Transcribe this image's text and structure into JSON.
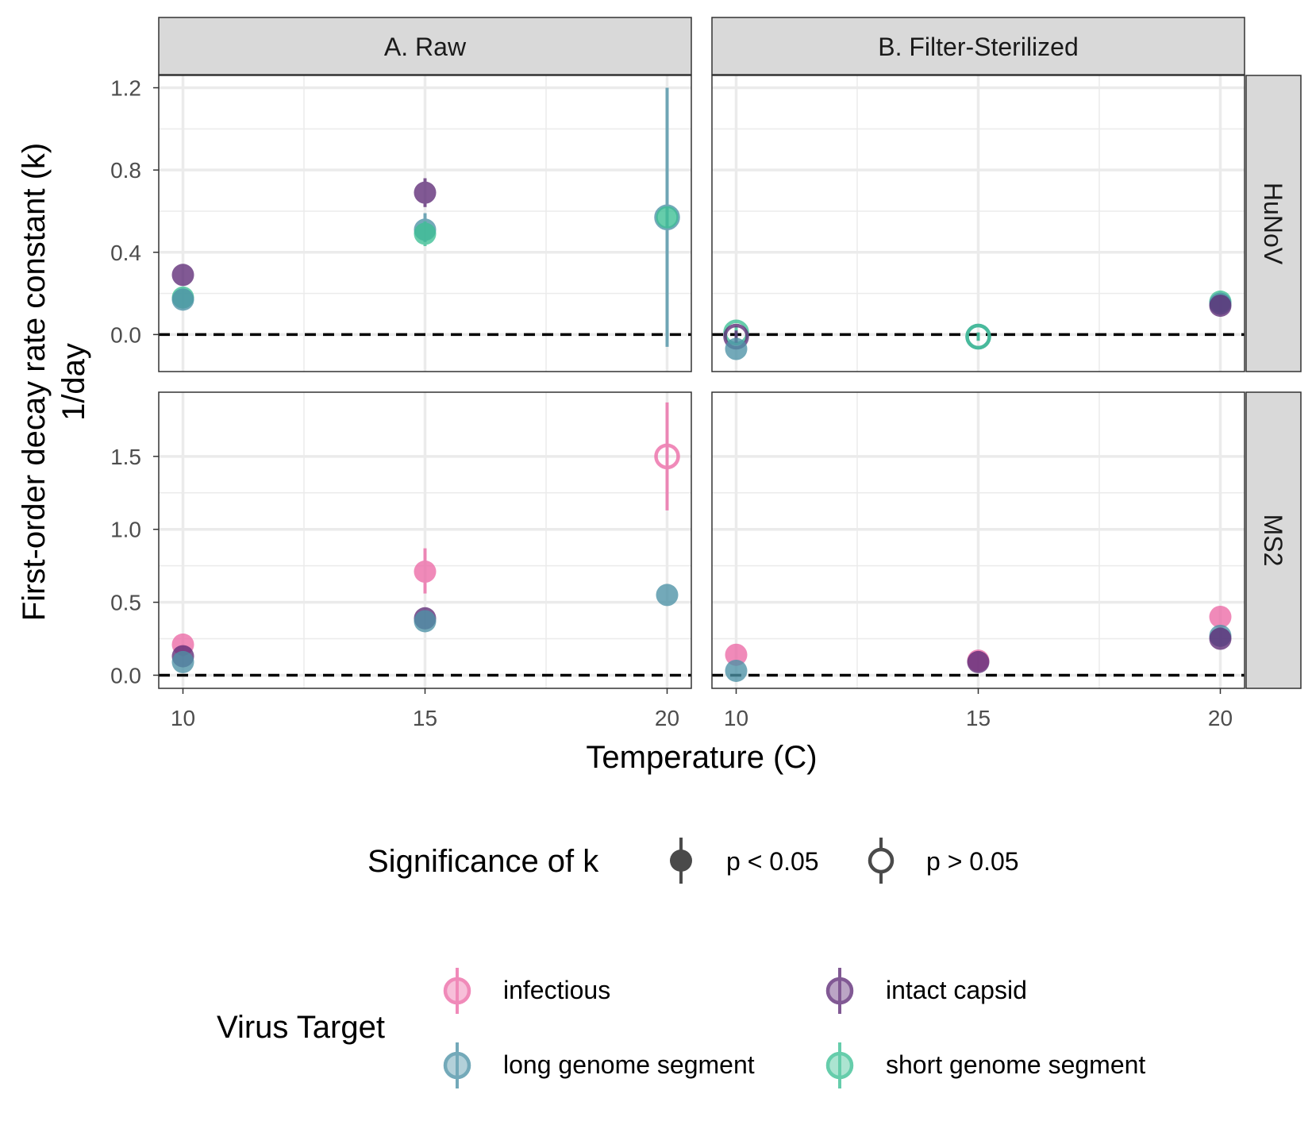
{
  "chart_data": {
    "type": "scatter",
    "subtype": "faceted point-range",
    "facet_columns": [
      "A. Raw",
      "B. Filter-Sterilized"
    ],
    "facet_rows": [
      "HuNoV",
      "MS2"
    ],
    "xlabel": "Temperature (C)",
    "ylabel_lines": [
      "First-order decay rate constant (k)",
      "1/day"
    ],
    "x_ticks": [
      "10",
      "15",
      "20"
    ],
    "xlim": [
      9.5,
      20.5
    ],
    "rows": {
      "HuNoV": {
        "ylim": [
          -0.18,
          1.26
        ],
        "y_ticks": [
          "0.0",
          "0.4",
          "0.8",
          "1.2"
        ],
        "y_tick_values": [
          0.0,
          0.4,
          0.8,
          1.2
        ]
      },
      "MS2": {
        "ylim": [
          -0.09,
          1.94
        ],
        "y_ticks": [
          "0.0",
          "0.5",
          "1.0",
          "1.5"
        ],
        "y_tick_values": [
          0.0,
          0.5,
          1.0,
          1.5
        ]
      }
    },
    "reference_line": {
      "y": 0,
      "style": "dashed"
    },
    "grid": true,
    "legend_position": "bottom",
    "colors": {
      "infectious": "#ec6aa6",
      "intact capsid": "#5e2b77",
      "long genome segment": "#4d92a6",
      "short genome segment": "#3cbf94"
    },
    "points": [
      {
        "panel": "A. Raw",
        "row": "HuNoV",
        "target": "intact capsid",
        "x": 10,
        "y": 0.29,
        "lo": 0.26,
        "hi": 0.33,
        "significant": true
      },
      {
        "panel": "A. Raw",
        "row": "HuNoV",
        "target": "short genome segment",
        "x": 10,
        "y": 0.18,
        "lo": 0.15,
        "hi": 0.21,
        "significant": true
      },
      {
        "panel": "A. Raw",
        "row": "HuNoV",
        "target": "long genome segment",
        "x": 10,
        "y": 0.17,
        "lo": 0.14,
        "hi": 0.2,
        "significant": true
      },
      {
        "panel": "A. Raw",
        "row": "HuNoV",
        "target": "intact capsid",
        "x": 15,
        "y": 0.69,
        "lo": 0.62,
        "hi": 0.76,
        "significant": true
      },
      {
        "panel": "A. Raw",
        "row": "HuNoV",
        "target": "long genome segment",
        "x": 15,
        "y": 0.51,
        "lo": 0.45,
        "hi": 0.59,
        "significant": true
      },
      {
        "panel": "A. Raw",
        "row": "HuNoV",
        "target": "short genome segment",
        "x": 15,
        "y": 0.49,
        "lo": 0.43,
        "hi": 0.55,
        "significant": true
      },
      {
        "panel": "A. Raw",
        "row": "HuNoV",
        "target": "long genome segment",
        "x": 20,
        "y": 0.57,
        "lo": -0.06,
        "hi": 1.2,
        "significant": false
      },
      {
        "panel": "A. Raw",
        "row": "HuNoV",
        "target": "short genome segment",
        "x": 20,
        "y": 0.57,
        "lo": 0.53,
        "hi": 0.61,
        "significant": true
      },
      {
        "panel": "B. Filter-Sterilized",
        "row": "HuNoV",
        "target": "short genome segment",
        "x": 10,
        "y": 0.01,
        "lo": -0.02,
        "hi": 0.04,
        "significant": false
      },
      {
        "panel": "B. Filter-Sterilized",
        "row": "HuNoV",
        "target": "intact capsid",
        "x": 10,
        "y": -0.01,
        "lo": -0.04,
        "hi": 0.02,
        "significant": false
      },
      {
        "panel": "B. Filter-Sterilized",
        "row": "HuNoV",
        "target": "long genome segment",
        "x": 10,
        "y": -0.07,
        "lo": -0.1,
        "hi": -0.04,
        "significant": true
      },
      {
        "panel": "B. Filter-Sterilized",
        "row": "HuNoV",
        "target": "long genome segment",
        "x": 15,
        "y": -0.01,
        "lo": -0.03,
        "hi": 0.01,
        "significant": false
      },
      {
        "panel": "B. Filter-Sterilized",
        "row": "HuNoV",
        "target": "short genome segment",
        "x": 15,
        "y": -0.01,
        "lo": -0.03,
        "hi": 0.01,
        "significant": false
      },
      {
        "panel": "B. Filter-Sterilized",
        "row": "HuNoV",
        "target": "short genome segment",
        "x": 20,
        "y": 0.16,
        "lo": 0.13,
        "hi": 0.19,
        "significant": true
      },
      {
        "panel": "B. Filter-Sterilized",
        "row": "HuNoV",
        "target": "long genome segment",
        "x": 20,
        "y": 0.15,
        "lo": 0.12,
        "hi": 0.18,
        "significant": true
      },
      {
        "panel": "B. Filter-Sterilized",
        "row": "HuNoV",
        "target": "intact capsid",
        "x": 20,
        "y": 0.14,
        "lo": 0.11,
        "hi": 0.17,
        "significant": true
      },
      {
        "panel": "A. Raw",
        "row": "MS2",
        "target": "infectious",
        "x": 10,
        "y": 0.21,
        "lo": 0.13,
        "hi": 0.28,
        "significant": true
      },
      {
        "panel": "A. Raw",
        "row": "MS2",
        "target": "intact capsid",
        "x": 10,
        "y": 0.13,
        "lo": 0.09,
        "hi": 0.17,
        "significant": true
      },
      {
        "panel": "A. Raw",
        "row": "MS2",
        "target": "long genome segment",
        "x": 10,
        "y": 0.09,
        "lo": 0.06,
        "hi": 0.12,
        "significant": true
      },
      {
        "panel": "A. Raw",
        "row": "MS2",
        "target": "infectious",
        "x": 15,
        "y": 0.71,
        "lo": 0.56,
        "hi": 0.87,
        "significant": true
      },
      {
        "panel": "A. Raw",
        "row": "MS2",
        "target": "intact capsid",
        "x": 15,
        "y": 0.39,
        "lo": 0.35,
        "hi": 0.43,
        "significant": true
      },
      {
        "panel": "A. Raw",
        "row": "MS2",
        "target": "long genome segment",
        "x": 15,
        "y": 0.37,
        "lo": 0.33,
        "hi": 0.41,
        "significant": true
      },
      {
        "panel": "A. Raw",
        "row": "MS2",
        "target": "infectious",
        "x": 20,
        "y": 1.5,
        "lo": 1.13,
        "hi": 1.87,
        "significant": false
      },
      {
        "panel": "A. Raw",
        "row": "MS2",
        "target": "long genome segment",
        "x": 20,
        "y": 0.55,
        "lo": 0.5,
        "hi": 0.6,
        "significant": true
      },
      {
        "panel": "B. Filter-Sterilized",
        "row": "MS2",
        "target": "infectious",
        "x": 10,
        "y": 0.14,
        "lo": 0.09,
        "hi": 0.19,
        "significant": true
      },
      {
        "panel": "B. Filter-Sterilized",
        "row": "MS2",
        "target": "long genome segment",
        "x": 10,
        "y": 0.03,
        "lo": 0.0,
        "hi": 0.06,
        "significant": true
      },
      {
        "panel": "B. Filter-Sterilized",
        "row": "MS2",
        "target": "infectious",
        "x": 15,
        "y": 0.1,
        "lo": 0.07,
        "hi": 0.13,
        "significant": true
      },
      {
        "panel": "B. Filter-Sterilized",
        "row": "MS2",
        "target": "intact capsid",
        "x": 15,
        "y": 0.09,
        "lo": 0.06,
        "hi": 0.12,
        "significant": true
      },
      {
        "panel": "B. Filter-Sterilized",
        "row": "MS2",
        "target": "infectious",
        "x": 20,
        "y": 0.4,
        "lo": 0.36,
        "hi": 0.44,
        "significant": true
      },
      {
        "panel": "B. Filter-Sterilized",
        "row": "MS2",
        "target": "long genome segment",
        "x": 20,
        "y": 0.27,
        "lo": 0.23,
        "hi": 0.31,
        "significant": true
      },
      {
        "panel": "B. Filter-Sterilized",
        "row": "MS2",
        "target": "intact capsid",
        "x": 20,
        "y": 0.25,
        "lo": 0.21,
        "hi": 0.29,
        "significant": true
      }
    ],
    "legend": {
      "significance_title": "Significance of k",
      "significance_items": [
        {
          "label": "p < 0.05",
          "significant": true
        },
        {
          "label": "p > 0.05",
          "significant": false
        }
      ],
      "target_title": "Virus Target",
      "target_items": [
        "infectious",
        "intact capsid",
        "long genome segment",
        "short genome segment"
      ]
    }
  }
}
